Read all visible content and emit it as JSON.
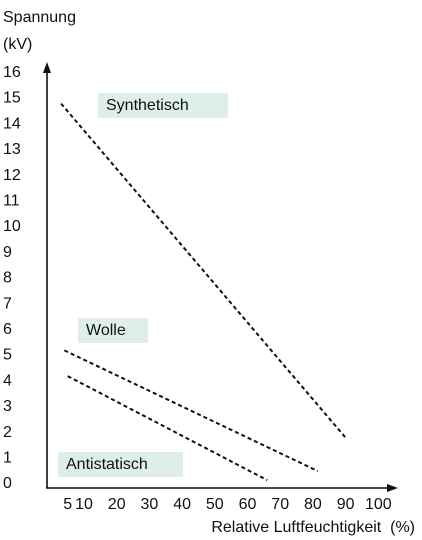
{
  "chart_data": {
    "type": "line",
    "ylabel": "Spannung",
    "yunit": "(kV)",
    "xlabel": "Relative Luftfeuchtigkeit  (%)",
    "series": [
      {
        "name": "Synthetisch",
        "color": "#111111",
        "x": [
          3,
          90
        ],
        "values": [
          14.8,
          1.8
        ]
      },
      {
        "name": "Wolle",
        "color": "#111111",
        "x": [
          4,
          81.5
        ],
        "values": [
          5.2,
          0.5
        ]
      },
      {
        "name": "Antistatisch",
        "color": "#111111",
        "x": [
          5,
          66
        ],
        "values": [
          4.2,
          0.15
        ]
      }
    ],
    "label_color": "#deeee8",
    "xlim": [
      0,
      103
    ],
    "ylim": [
      0,
      16
    ],
    "xticks": [
      5,
      10,
      20,
      30,
      40,
      50,
      60,
      70,
      80,
      90,
      100
    ],
    "yticks": [
      0,
      1,
      2,
      3,
      4,
      5,
      6,
      7,
      8,
      9,
      10,
      11,
      12,
      13,
      14,
      15,
      16
    ],
    "grid": false
  }
}
